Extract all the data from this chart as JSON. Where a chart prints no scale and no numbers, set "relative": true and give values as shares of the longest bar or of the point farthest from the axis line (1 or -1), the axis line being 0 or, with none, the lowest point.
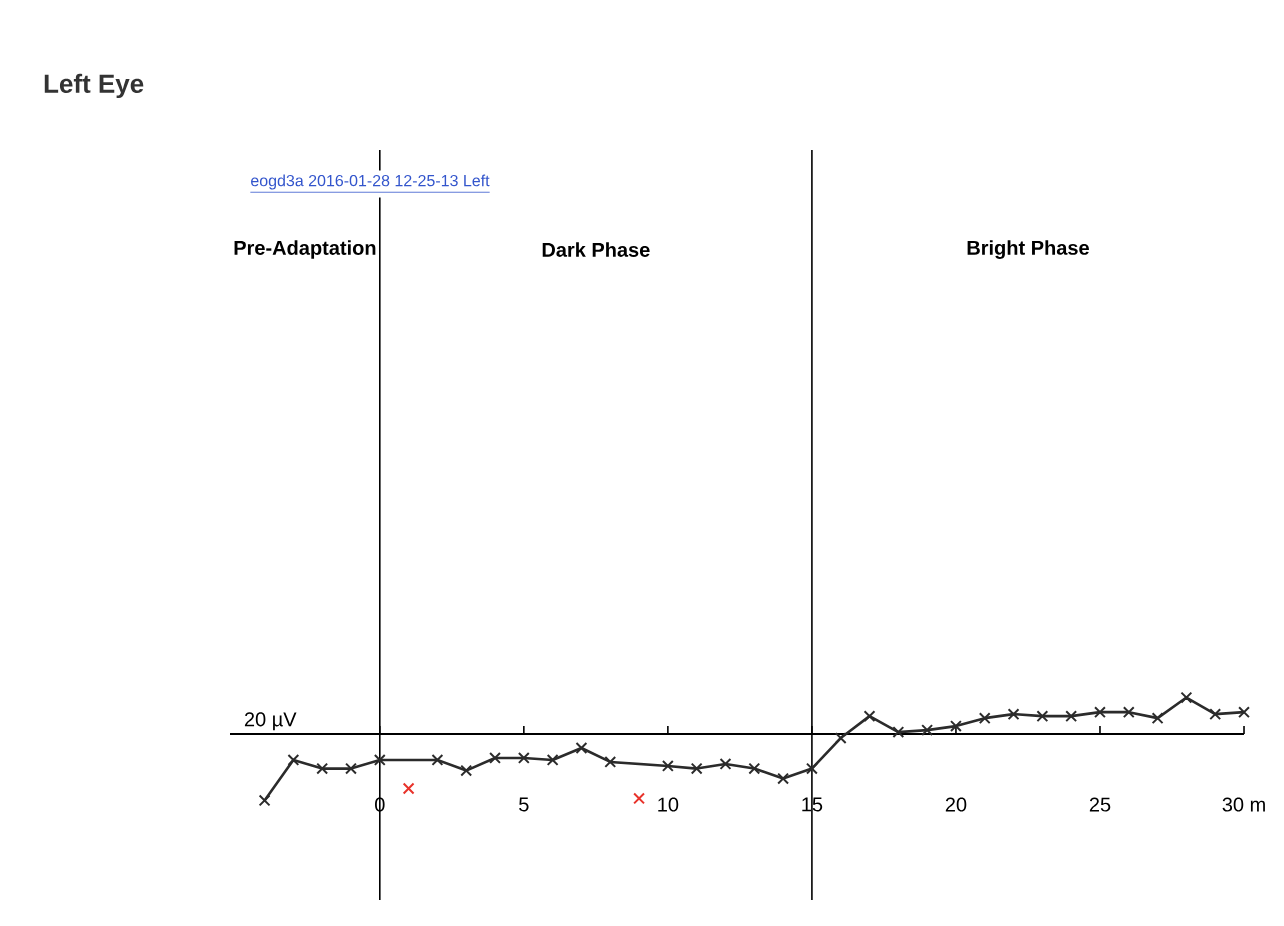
{
  "chart_data": {
    "type": "line",
    "title": "Left Eye",
    "subtitle": "eogd3a 2016-01-28 12-25-13 Left",
    "relative": true,
    "xlim": [
      -5.2,
      30
    ],
    "xticks": [
      0,
      5,
      10,
      15,
      20,
      25,
      {
        "value": 30,
        "label": "30 m"
      }
    ],
    "marker": "cross",
    "series": [
      {
        "color": "#2b2b2b",
        "x": [
          -4,
          -3,
          -2,
          -1,
          0,
          2,
          3,
          4,
          5,
          6,
          7,
          8,
          10,
          11,
          12,
          13,
          14,
          15,
          16,
          17,
          18,
          19,
          20,
          21,
          22,
          23,
          24,
          25,
          26,
          27,
          28,
          29,
          30
        ],
        "values": [
          -1,
          -0.39,
          -0.52,
          -0.52,
          -0.39,
          -0.39,
          -0.55,
          -0.36,
          -0.36,
          -0.39,
          -0.21,
          -0.42,
          -0.48,
          -0.52,
          -0.45,
          -0.52,
          -0.67,
          -0.52,
          -0.06,
          0.27,
          0.03,
          0.06,
          0.12,
          0.24,
          0.3,
          0.27,
          0.27,
          0.33,
          0.33,
          0.24,
          0.55,
          0.3,
          0.33
        ]
      },
      {
        "type": "scatter",
        "color": "#e8322a",
        "x": [
          1,
          9
        ],
        "values": [
          -0.82,
          -0.97
        ]
      }
    ],
    "ref_lines": [
      {
        "axis": "x",
        "value": 0,
        "color": "#000000"
      },
      {
        "axis": "x",
        "value": 15,
        "color": "#000000"
      }
    ],
    "annotations": [
      "20 µV",
      "Pre-Adaptation",
      "Dark Phase",
      "Bright Phase"
    ]
  }
}
